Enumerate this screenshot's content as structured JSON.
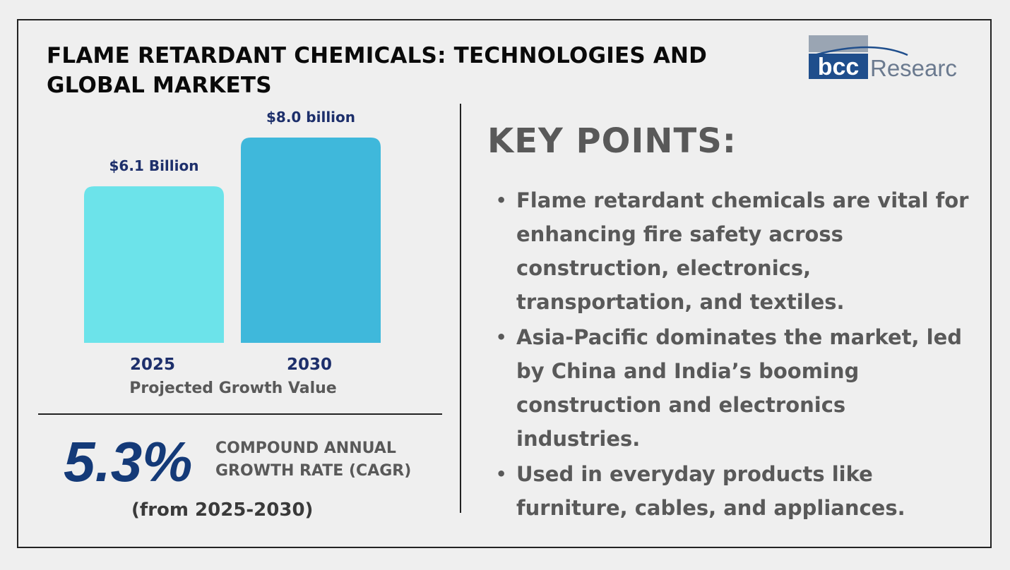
{
  "title": "FLAME RETARDANT CHEMICALS: TECHNOLOGIES AND GLOBAL MARKETS",
  "logo": {
    "mark": "bcc",
    "text": "Research",
    "mark_color": "#1f4e8c",
    "text_color": "#6b7a8f"
  },
  "chart_data": {
    "type": "bar",
    "categories": [
      "2025",
      "2030"
    ],
    "values": [
      6.1,
      8.0
    ],
    "data_labels": [
      "$6.1 Billion",
      "$8.0 billion"
    ],
    "colors": [
      "#6ce3ea",
      "#3fb8db"
    ],
    "label_color": "#1d2f6b",
    "caption": "Projected Growth Value",
    "title": "",
    "ylabel": "",
    "unit": "",
    "ylim": [
      0,
      8.0
    ],
    "grid": false
  },
  "cagr": {
    "value": "5.3%",
    "label": "COMPOUND ANNUAL GROWTH RATE (CAGR)",
    "period": "(from 2025-2030)"
  },
  "key_points": {
    "heading": "KEY POINTS:",
    "items": [
      "Flame retardant chemicals are vital for enhancing fire safety across construction, electronics, transportation, and textiles.",
      "Asia-Pacific dominates the market, led by China and India’s booming construction and electronics industries.",
      "Used in everyday products like furniture, cables, and appliances."
    ]
  },
  "colors": {
    "accent": "#143a78",
    "text_gray": "#595959",
    "background": "#efefef"
  }
}
